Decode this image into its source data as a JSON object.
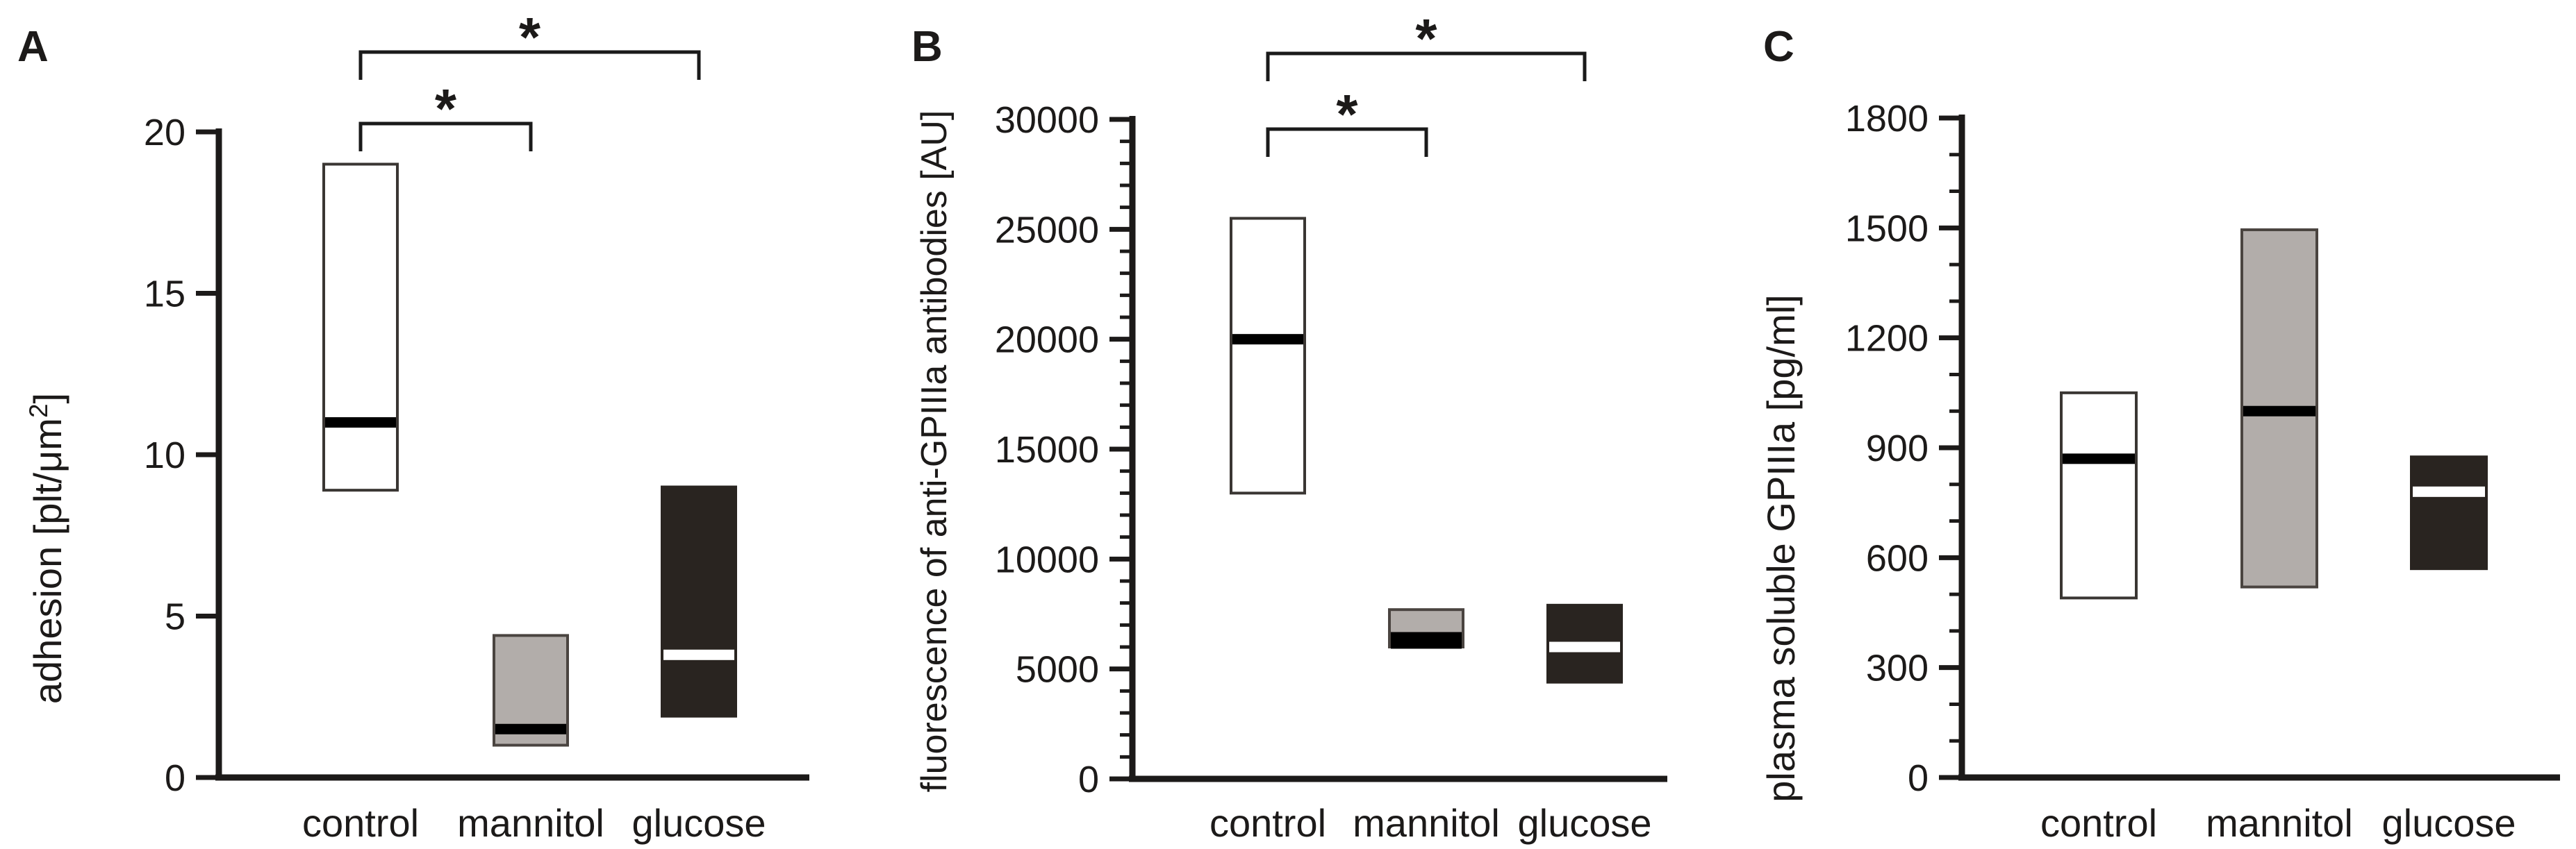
{
  "figure": {
    "description_title": "",
    "background": "#ffffff"
  },
  "styles": {
    "axis_color": "#1c1a19",
    "text_color": "#1c1a19",
    "bracket_color": "#1a1a1a",
    "box_styles": {
      "white": {
        "fill": "#ffffff",
        "stroke": "#3a3633",
        "median": "#000000"
      },
      "gray": {
        "fill": "#b2adaa",
        "stroke": "#4a4440",
        "median": "#000000"
      },
      "dark": {
        "fill": "#292420",
        "stroke": "#292420",
        "median": "#ffffff"
      }
    }
  },
  "chart_data": [
    {
      "type": "box",
      "panel_label": "A",
      "ylabel": "adhesion [plt/μm²]",
      "ylabel_parts": [
        {
          "text": "adhesion [plt/μm"
        },
        {
          "text": "2",
          "superscript": true
        },
        {
          "text": "]"
        }
      ],
      "ylim": [
        0,
        20
      ],
      "yticks": [
        0,
        5,
        10,
        15,
        20
      ],
      "minor_tick_step": null,
      "categories": [
        "control",
        "mannitol",
        "glucose"
      ],
      "boxes": [
        {
          "category": "control",
          "q1": 8.9,
          "median": 11.0,
          "q3": 19.0,
          "style": "white"
        },
        {
          "category": "mannitol",
          "q1": 1.0,
          "median": 1.5,
          "q3": 4.4,
          "style": "gray"
        },
        {
          "category": "glucose",
          "q1": 1.9,
          "median": 3.8,
          "q3": 9.0,
          "style": "dark"
        }
      ],
      "significance": [
        {
          "between": [
            "control",
            "mannitol"
          ],
          "label": "*"
        },
        {
          "between": [
            "control",
            "glucose"
          ],
          "label": "*"
        }
      ]
    },
    {
      "type": "box",
      "panel_label": "B",
      "ylabel": "fluorescence of anti-GPIIIa antibodies [AU]",
      "ylabel_parts": [
        {
          "text": "fluorescence of anti-GPIIIa antibodies [AU]"
        }
      ],
      "ylim": [
        0,
        30000
      ],
      "yticks": [
        0,
        5000,
        10000,
        15000,
        20000,
        25000,
        30000
      ],
      "minor_tick_step": 1000,
      "categories": [
        "control",
        "mannitol",
        "glucose"
      ],
      "boxes": [
        {
          "category": "control",
          "q1": 13000,
          "median": 20000,
          "q3": 25500,
          "style": "white"
        },
        {
          "category": "mannitol",
          "q1": 6000,
          "median": 6300,
          "q3": 7700,
          "style": "gray",
          "median_thickness": 24
        },
        {
          "category": "glucose",
          "q1": 4400,
          "median": 6000,
          "q3": 7900,
          "style": "dark"
        }
      ],
      "significance": [
        {
          "between": [
            "control",
            "mannitol"
          ],
          "label": "*"
        },
        {
          "between": [
            "control",
            "glucose"
          ],
          "label": "*"
        }
      ]
    },
    {
      "type": "box",
      "panel_label": "C",
      "ylabel": "plasma soluble GPIIIa [pg/ml]",
      "ylabel_parts": [
        {
          "text": "plasma soluble GPIIIa [pg/ml]"
        }
      ],
      "ylim": [
        0,
        1800
      ],
      "yticks": [
        0,
        300,
        600,
        900,
        1200,
        1500,
        1800
      ],
      "minor_tick_step": 100,
      "categories": [
        "control",
        "mannitol",
        "glucose"
      ],
      "boxes": [
        {
          "category": "control",
          "q1": 490,
          "median": 870,
          "q3": 1050,
          "style": "white"
        },
        {
          "category": "mannitol",
          "q1": 520,
          "median": 1000,
          "q3": 1495,
          "style": "gray"
        },
        {
          "category": "glucose",
          "q1": 570,
          "median": 780,
          "q3": 875,
          "style": "dark"
        }
      ],
      "significance": []
    }
  ]
}
